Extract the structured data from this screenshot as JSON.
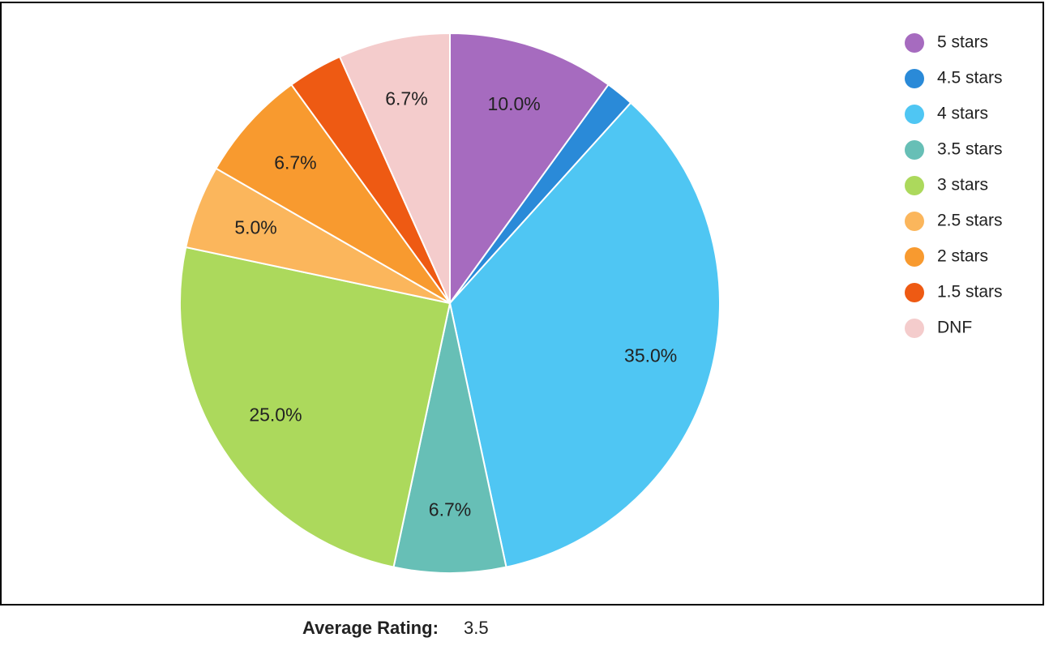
{
  "chart_data": {
    "type": "pie",
    "categories": [
      "5 stars",
      "4.5 stars",
      "4 stars",
      "3.5 stars",
      "3 stars",
      "2.5 stars",
      "2 stars",
      "1.5 stars",
      "DNF"
    ],
    "values": [
      10.0,
      1.7,
      35.0,
      6.7,
      25.0,
      5.0,
      6.7,
      3.3,
      6.7
    ],
    "value_labels": [
      "10.0%",
      null,
      "35.0%",
      "6.7%",
      "25.0%",
      "5.0%",
      "6.7%",
      null,
      "6.7%"
    ],
    "colors": [
      "#a66bbf",
      "#2a8ad8",
      "#4fc6f3",
      "#67bfb6",
      "#acd95c",
      "#fbb65c",
      "#f89a2f",
      "#ee5a13",
      "#f4cccc"
    ],
    "legend": "right"
  },
  "summary": {
    "label": "Average Rating:",
    "value": "3.5"
  }
}
